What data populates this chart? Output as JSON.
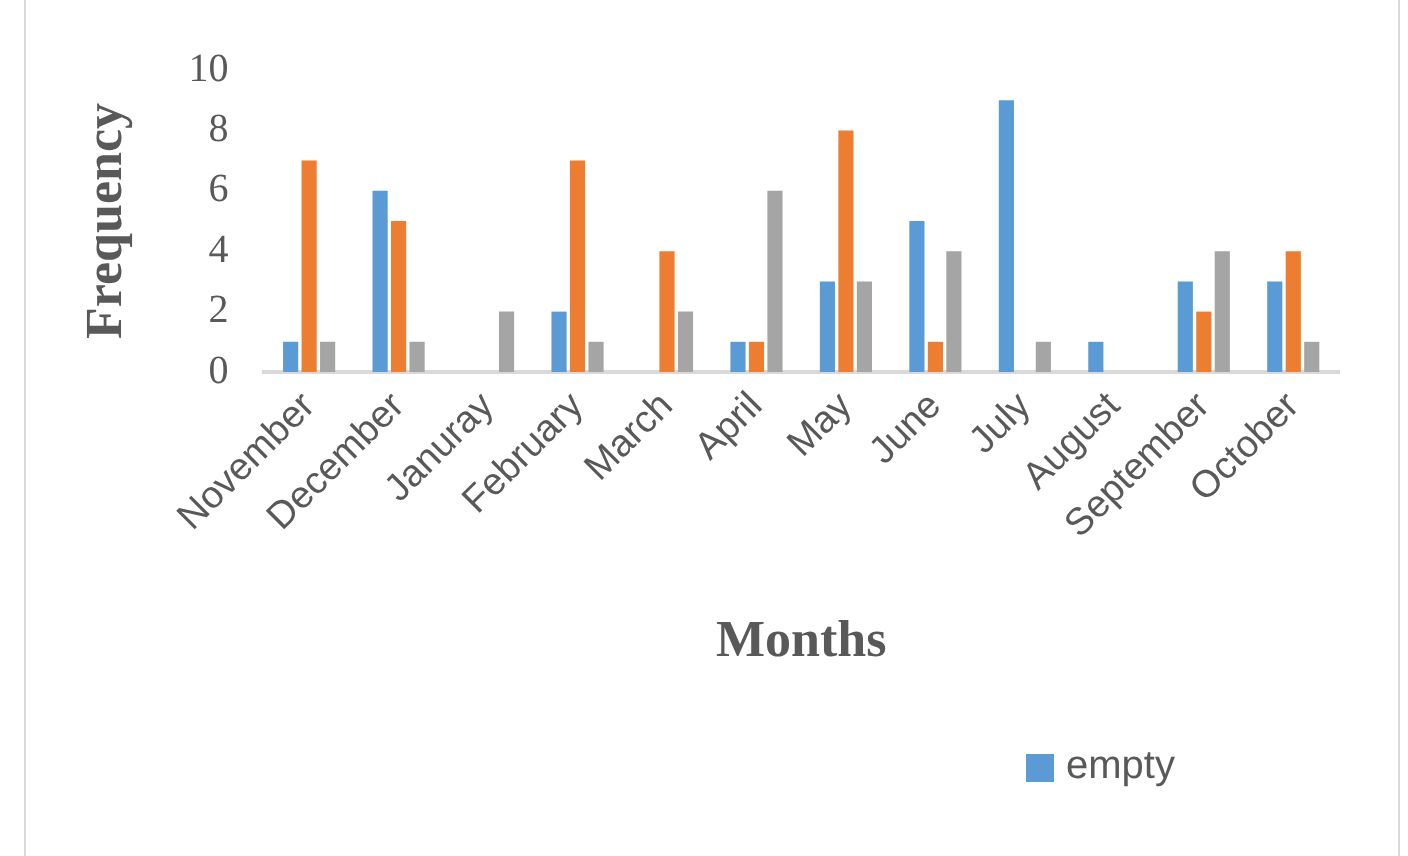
{
  "chart_data": {
    "type": "bar",
    "xlabel": "Months",
    "ylabel": "Frequency",
    "categories": [
      "November",
      "December",
      "Januray",
      "February",
      "March",
      "April",
      "May",
      "June",
      "July",
      "August",
      "September",
      "October"
    ],
    "series": [
      {
        "name": "empty",
        "color": "#5b9bd5",
        "values": [
          1,
          6,
          0,
          2,
          0,
          1,
          3,
          5,
          9,
          1,
          3,
          3
        ]
      },
      {
        "color": "#ed7d31",
        "values": [
          7,
          5,
          0,
          7,
          4,
          1,
          8,
          1,
          0,
          0,
          2,
          4
        ]
      },
      {
        "color": "#a5a5a5",
        "values": [
          1,
          1,
          2,
          1,
          2,
          6,
          3,
          4,
          1,
          0,
          4,
          1
        ]
      }
    ],
    "ylim": [
      0,
      10
    ],
    "yticks": [
      0,
      2,
      4,
      6,
      8,
      10
    ],
    "legend": "bottom"
  }
}
